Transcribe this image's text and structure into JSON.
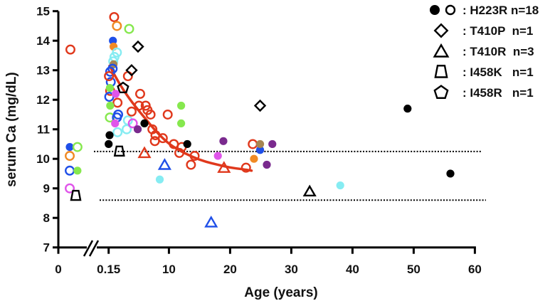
{
  "chart_data": {
    "type": "scatter",
    "title": "",
    "xlabel": "Age (years)",
    "ylabel": "serum Ca (mg/dL)",
    "xlim": [
      0,
      60
    ],
    "ylim": [
      7,
      15
    ],
    "x_axis_break": "between 0 and 0.15",
    "xticks": [
      "0",
      "0.15",
      "10",
      "20",
      "30",
      "40",
      "50",
      "60"
    ],
    "xtick_values": [
      0,
      0.15,
      10,
      20,
      30,
      40,
      50,
      60
    ],
    "yticks": [
      7,
      8,
      9,
      10,
      11,
      12,
      13,
      14,
      15
    ],
    "grid": false,
    "legend_placement": "top-right",
    "reference_lines": [
      10.25,
      8.6
    ],
    "legend": [
      {
        "shape": "circle-pair",
        "label": ": H223R n=18"
      },
      {
        "shape": "diamond",
        "label": ": T410P  n=1"
      },
      {
        "shape": "triangle",
        "label": ": T410R  n=3"
      },
      {
        "shape": "trapezoid",
        "label": ": I458K   n=1"
      },
      {
        "shape": "pentagon",
        "label": ": I458R   n=1"
      }
    ],
    "colors": {
      "red": "#e0381c",
      "blue": "#1f4fe8",
      "green": "#86e84e",
      "orange": "#f08a24",
      "cyan": "#86ecf2",
      "magenta": "#e055ea",
      "purple": "#7a2a8e",
      "brown": "#a68552",
      "black": "#000000"
    },
    "fit_curve": {
      "color": "#e0381c",
      "points": [
        [
          0.3,
          13.15
        ],
        [
          2,
          12.5
        ],
        [
          4,
          11.9
        ],
        [
          6,
          11.4
        ],
        [
          8,
          10.9
        ],
        [
          10,
          10.5
        ],
        [
          12,
          10.25
        ],
        [
          14,
          10.05
        ],
        [
          16,
          9.9
        ],
        [
          18,
          9.8
        ],
        [
          20,
          9.7
        ],
        [
          22,
          9.65
        ],
        [
          23.5,
          9.6
        ]
      ]
    },
    "points": [
      {
        "age": 0.036,
        "ca": 13.7,
        "shape": "circle",
        "color": "red",
        "filled": false
      },
      {
        "age": 0.034,
        "ca": 10.4,
        "shape": "circle",
        "color": "blue",
        "filled": true
      },
      {
        "age": 0.057,
        "ca": 10.4,
        "shape": "circle",
        "color": "green",
        "filled": false
      },
      {
        "age": 0.034,
        "ca": 10.1,
        "shape": "circle",
        "color": "orange",
        "filled": false
      },
      {
        "age": 0.034,
        "ca": 9.6,
        "shape": "circle",
        "color": "blue",
        "filled": false
      },
      {
        "age": 0.057,
        "ca": 9.6,
        "shape": "circle",
        "color": "green",
        "filled": true
      },
      {
        "age": 0.034,
        "ca": 9.0,
        "shape": "circle",
        "color": "magenta",
        "filled": false
      },
      {
        "age": 0.052,
        "ca": 8.75,
        "shape": "trapezoid",
        "color": "black",
        "filled": false
      },
      {
        "age": 1.05,
        "ca": 14.8,
        "shape": "circle",
        "color": "red",
        "filled": false
      },
      {
        "age": 1.5,
        "ca": 14.5,
        "shape": "circle",
        "color": "orange",
        "filled": false
      },
      {
        "age": 3.5,
        "ca": 14.4,
        "shape": "circle",
        "color": "green",
        "filled": false
      },
      {
        "age": 0.85,
        "ca": 14.0,
        "shape": "circle",
        "color": "blue",
        "filled": true
      },
      {
        "age": 0.95,
        "ca": 13.8,
        "shape": "circle",
        "color": "orange",
        "filled": true
      },
      {
        "age": 1.5,
        "ca": 13.6,
        "shape": "circle",
        "color": "cyan",
        "filled": false
      },
      {
        "age": 1.1,
        "ca": 13.45,
        "shape": "circle",
        "color": "cyan",
        "filled": false
      },
      {
        "age": 0.9,
        "ca": 13.3,
        "shape": "circle",
        "color": "cyan",
        "filled": false
      },
      {
        "age": 0.95,
        "ca": 13.2,
        "shape": "circle",
        "color": "brown",
        "filled": true
      },
      {
        "age": 0.8,
        "ca": 13.05,
        "shape": "circle",
        "color": "blue",
        "filled": false
      },
      {
        "age": 0.4,
        "ca": 12.95,
        "shape": "circle",
        "color": "blue",
        "filled": false
      },
      {
        "age": 0.5,
        "ca": 12.6,
        "shape": "circle",
        "color": "blue",
        "filled": false
      },
      {
        "age": 0.2,
        "ca": 12.8,
        "shape": "circle",
        "color": "red",
        "filled": false
      },
      {
        "age": 3.3,
        "ca": 12.8,
        "shape": "circle",
        "color": "red",
        "filled": false
      },
      {
        "age": 4.95,
        "ca": 13.8,
        "shape": "diamond",
        "color": "black",
        "filled": false
      },
      {
        "age": 3.9,
        "ca": 13.0,
        "shape": "diamond",
        "color": "black",
        "filled": false
      },
      {
        "age": 2.5,
        "ca": 12.4,
        "shape": "pentagon",
        "color": "black",
        "filled": false
      },
      {
        "age": 0.4,
        "ca": 12.3,
        "shape": "circle",
        "color": "red",
        "filled": false
      },
      {
        "age": 0.35,
        "ca": 12.4,
        "shape": "circle",
        "color": "green",
        "filled": true
      },
      {
        "age": 0.25,
        "ca": 12.1,
        "shape": "circle",
        "color": "blue",
        "filled": false
      },
      {
        "age": 1.3,
        "ca": 12.2,
        "shape": "circle",
        "color": "magenta",
        "filled": true
      },
      {
        "age": 1.6,
        "ca": 11.9,
        "shape": "circle",
        "color": "red",
        "filled": false
      },
      {
        "age": 0.4,
        "ca": 11.8,
        "shape": "circle",
        "color": "green",
        "filled": true
      },
      {
        "age": 0.35,
        "ca": 11.4,
        "shape": "circle",
        "color": "green",
        "filled": false
      },
      {
        "age": 1.7,
        "ca": 11.5,
        "shape": "circle",
        "color": "blue",
        "filled": false
      },
      {
        "age": 1.5,
        "ca": 11.4,
        "shape": "circle",
        "color": "blue",
        "filled": false
      },
      {
        "age": 3.3,
        "ca": 11.3,
        "shape": "circle",
        "color": "cyan",
        "filled": false
      },
      {
        "age": 1.2,
        "ca": 11.2,
        "shape": "circle",
        "color": "magenta",
        "filled": true
      },
      {
        "age": 1.6,
        "ca": 10.9,
        "shape": "circle",
        "color": "cyan",
        "filled": false
      },
      {
        "age": 3.1,
        "ca": 11.0,
        "shape": "circle",
        "color": "cyan",
        "filled": false
      },
      {
        "age": 4.1,
        "ca": 11.2,
        "shape": "circle",
        "color": "magenta",
        "filled": false
      },
      {
        "age": 4.9,
        "ca": 11.0,
        "shape": "circle",
        "color": "purple",
        "filled": true
      },
      {
        "age": 0.3,
        "ca": 10.8,
        "shape": "circle",
        "color": "black",
        "filled": true
      },
      {
        "age": 0.15,
        "ca": 10.5,
        "shape": "circle",
        "color": "black",
        "filled": true
      },
      {
        "age": 6.0,
        "ca": 11.2,
        "shape": "circle",
        "color": "black",
        "filled": true
      },
      {
        "age": 1.9,
        "ca": 10.25,
        "shape": "trapezoid",
        "color": "black",
        "filled": false
      },
      {
        "age": 5.3,
        "ca": 12.2,
        "shape": "circle",
        "color": "red",
        "filled": false
      },
      {
        "age": 5.1,
        "ca": 11.8,
        "shape": "circle",
        "color": "red",
        "filled": false
      },
      {
        "age": 6.2,
        "ca": 11.8,
        "shape": "circle",
        "color": "red",
        "filled": false
      },
      {
        "age": 6.5,
        "ca": 11.65,
        "shape": "circle",
        "color": "red",
        "filled": false
      },
      {
        "age": 7.0,
        "ca": 11.5,
        "shape": "circle",
        "color": "red",
        "filled": false
      },
      {
        "age": 3.9,
        "ca": 11.6,
        "shape": "circle",
        "color": "red",
        "filled": false
      },
      {
        "age": 7.3,
        "ca": 11.0,
        "shape": "circle",
        "color": "red",
        "filled": false
      },
      {
        "age": 7.8,
        "ca": 10.8,
        "shape": "circle",
        "color": "red",
        "filled": false
      },
      {
        "age": 7.7,
        "ca": 10.6,
        "shape": "circle",
        "color": "red",
        "filled": false
      },
      {
        "age": 9.0,
        "ca": 10.7,
        "shape": "circle",
        "color": "red",
        "filled": false
      },
      {
        "age": 9.8,
        "ca": 11.5,
        "shape": "circle",
        "color": "red",
        "filled": false
      },
      {
        "age": 10.8,
        "ca": 10.5,
        "shape": "circle",
        "color": "red",
        "filled": false
      },
      {
        "age": 11.7,
        "ca": 10.2,
        "shape": "circle",
        "color": "red",
        "filled": false
      },
      {
        "age": 12.1,
        "ca": 10.4,
        "shape": "circle",
        "color": "red",
        "filled": false
      },
      {
        "age": 13.6,
        "ca": 9.8,
        "shape": "circle",
        "color": "red",
        "filled": false
      },
      {
        "age": 14.2,
        "ca": 10.1,
        "shape": "circle",
        "color": "red",
        "filled": false
      },
      {
        "age": 22.6,
        "ca": 9.7,
        "shape": "circle",
        "color": "red",
        "filled": false
      },
      {
        "age": 23.7,
        "ca": 10.5,
        "shape": "circle",
        "color": "red",
        "filled": false
      },
      {
        "age": 12.0,
        "ca": 11.8,
        "shape": "circle",
        "color": "green",
        "filled": true
      },
      {
        "age": 12.0,
        "ca": 11.2,
        "shape": "circle",
        "color": "green",
        "filled": true
      },
      {
        "age": 13.0,
        "ca": 10.5,
        "shape": "circle",
        "color": "black",
        "filled": true
      },
      {
        "age": 18.0,
        "ca": 10.1,
        "shape": "circle",
        "color": "magenta",
        "filled": true
      },
      {
        "age": 18.9,
        "ca": 10.6,
        "shape": "circle",
        "color": "purple",
        "filled": true
      },
      {
        "age": 26.9,
        "ca": 10.5,
        "shape": "circle",
        "color": "purple",
        "filled": true
      },
      {
        "age": 26.0,
        "ca": 9.8,
        "shape": "circle",
        "color": "purple",
        "filled": true
      },
      {
        "age": 24.9,
        "ca": 10.3,
        "shape": "circle",
        "color": "blue",
        "filled": true
      },
      {
        "age": 24.9,
        "ca": 10.5,
        "shape": "circle",
        "color": "brown",
        "filled": true
      },
      {
        "age": 23.9,
        "ca": 10.0,
        "shape": "circle",
        "color": "orange",
        "filled": true
      },
      {
        "age": 24.9,
        "ca": 11.8,
        "shape": "diamond",
        "color": "black",
        "filled": false
      },
      {
        "age": 6.0,
        "ca": 10.2,
        "shape": "triangle",
        "color": "red",
        "filled": false
      },
      {
        "age": 19.0,
        "ca": 9.7,
        "shape": "triangle",
        "color": "red",
        "filled": false
      },
      {
        "age": 9.3,
        "ca": 9.8,
        "shape": "triangle",
        "color": "blue",
        "filled": false
      },
      {
        "age": 16.9,
        "ca": 7.85,
        "shape": "triangle",
        "color": "blue",
        "filled": false
      },
      {
        "age": 8.5,
        "ca": 9.3,
        "shape": "circle",
        "color": "cyan",
        "filled": true
      },
      {
        "age": 33.0,
        "ca": 8.9,
        "shape": "triangle",
        "color": "black",
        "filled": false
      },
      {
        "age": 38.0,
        "ca": 9.1,
        "shape": "circle",
        "color": "cyan",
        "filled": true
      },
      {
        "age": 49.0,
        "ca": 11.7,
        "shape": "circle",
        "color": "black",
        "filled": true
      },
      {
        "age": 56.0,
        "ca": 9.5,
        "shape": "circle",
        "color": "black",
        "filled": true
      }
    ]
  }
}
